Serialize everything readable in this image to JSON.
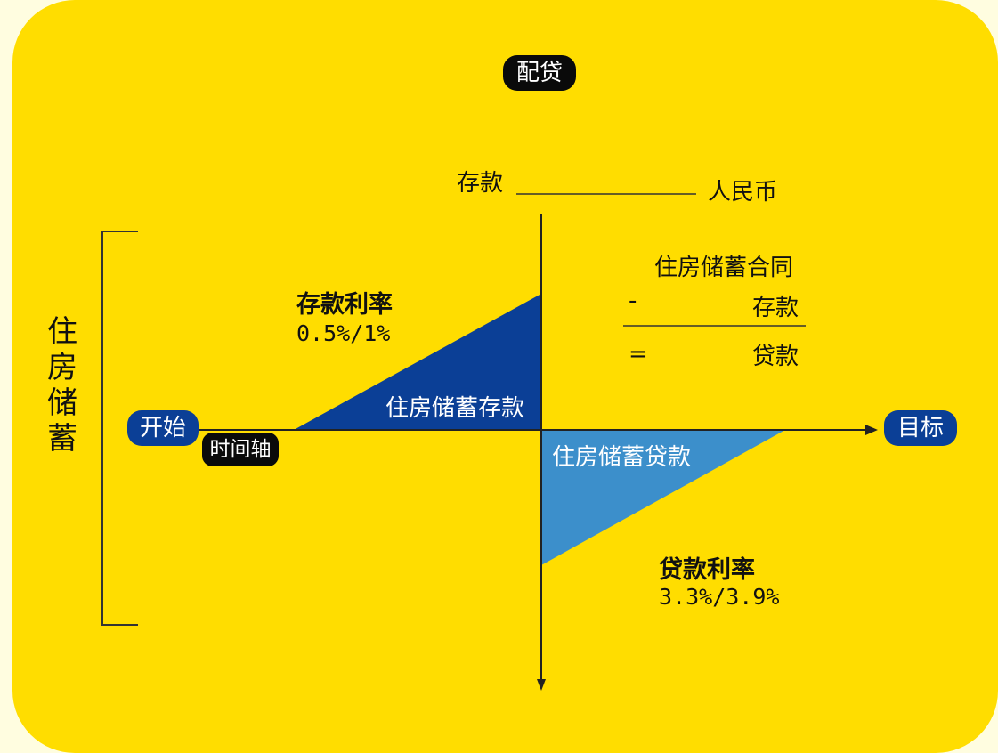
{
  "title": "配贷",
  "deposit_line": {
    "left": "存款",
    "right": "人民币"
  },
  "side_label": "住房储蓄",
  "start": "开始",
  "timeline": "时间轴",
  "goal": "目标",
  "deposit_rate": {
    "label": "存款利率",
    "value": "0.5%/1%"
  },
  "loan_rate": {
    "label": "贷款利率",
    "value": "3.3%/3.9%"
  },
  "deposit_area": "住房储蓄存款",
  "loan_area": "住房储蓄贷款",
  "formula": {
    "line1": "住房储蓄合同",
    "minus_sign": "-",
    "line2": "存款",
    "equals_sign": "=",
    "line3": "贷款"
  },
  "colors": {
    "background": "#FFDD00",
    "deposit_triangle": "#0B3F96",
    "loan_triangle": "#3C8FCB",
    "pill_black": "#0a0a0a"
  }
}
